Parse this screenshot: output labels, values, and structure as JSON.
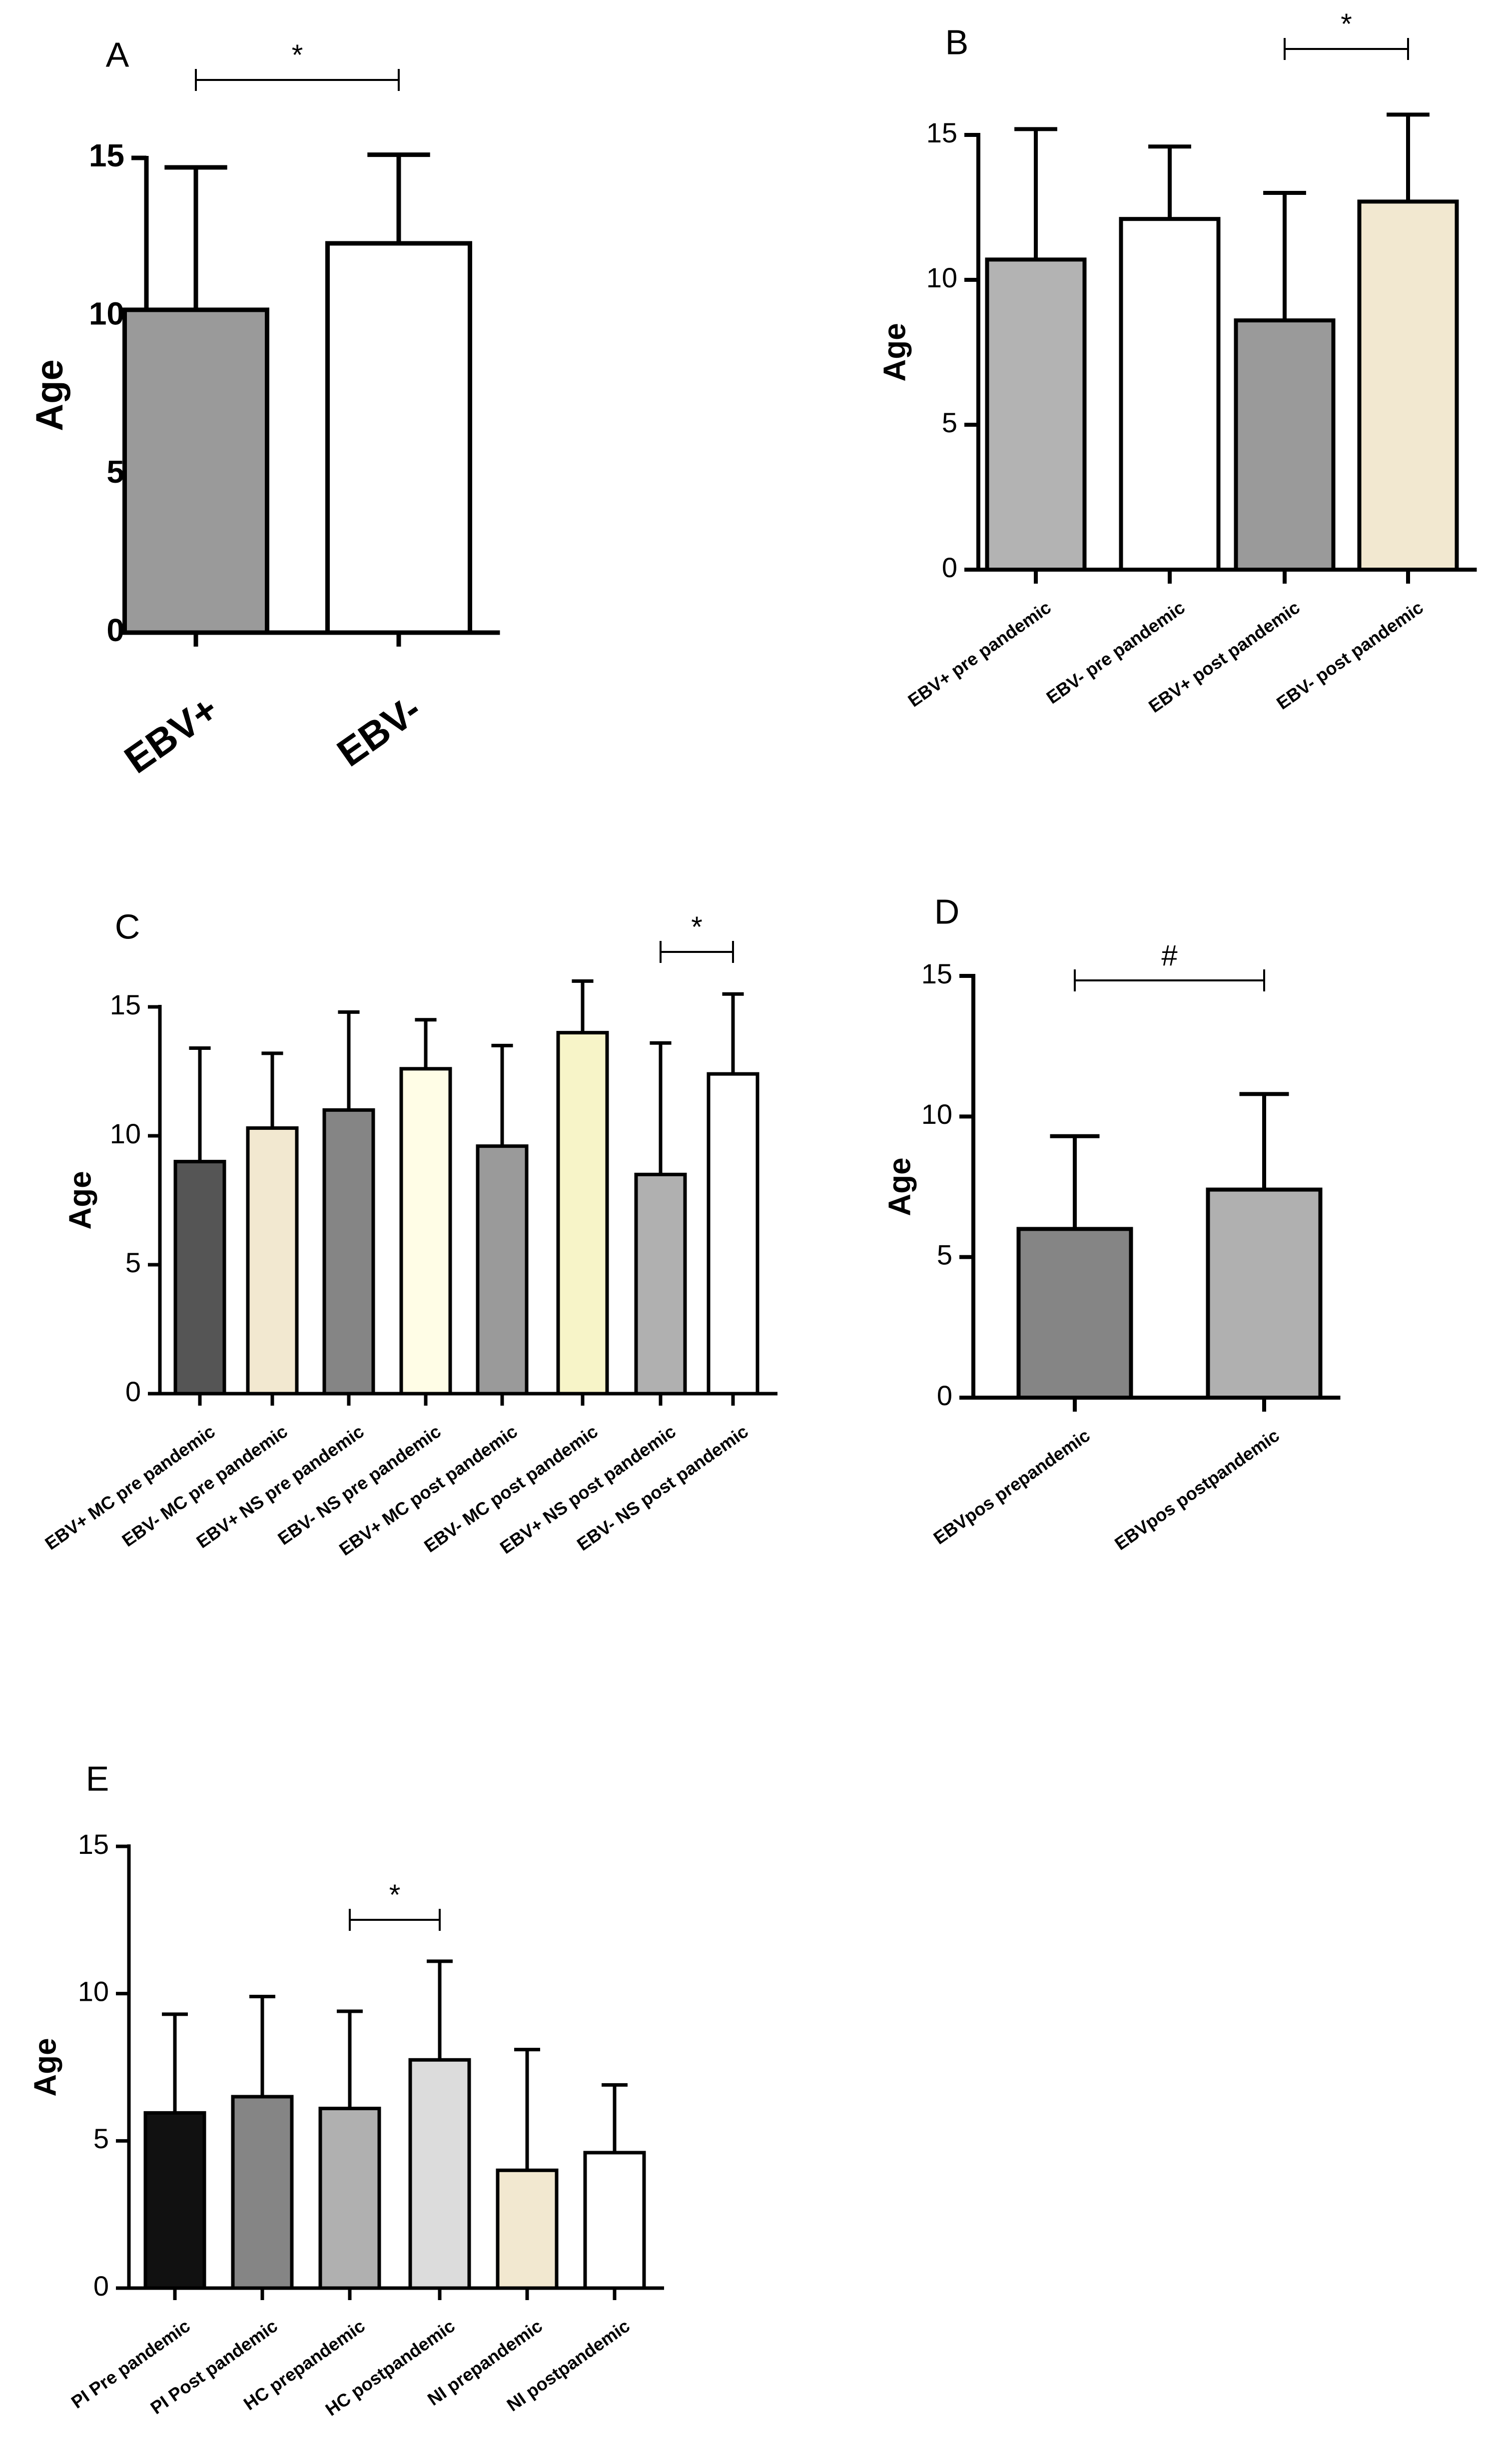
{
  "chart_data": [
    {
      "panel": "A",
      "type": "bar",
      "ylabel": "Age",
      "ylim": [
        0,
        15
      ],
      "yticks": [
        0,
        5,
        10,
        15
      ],
      "categories": [
        "EBV+",
        "EBV-"
      ],
      "values": [
        10.2,
        12.3
      ],
      "errors": [
        4.5,
        2.8
      ],
      "colors": [
        "#9a9a9a",
        "#ffffff"
      ],
      "significance": [
        {
          "from": 0,
          "to": 1,
          "label": "*"
        }
      ]
    },
    {
      "panel": "B",
      "type": "bar",
      "ylabel": "Age",
      "ylim": [
        0,
        15
      ],
      "yticks": [
        0,
        5,
        10,
        15
      ],
      "categories": [
        "EBV+ pre pandemic",
        "EBV- pre pandemic",
        "EBV+ post pandemic",
        "EBV- post pandemic"
      ],
      "values": [
        10.7,
        12.1,
        8.6,
        12.7
      ],
      "errors": [
        4.5,
        2.5,
        4.4,
        3.0
      ],
      "colors": [
        "#b3b3b3",
        "#ffffff",
        "#9a9a9a",
        "#f2e8d0"
      ],
      "significance": [
        {
          "from": 2,
          "to": 3,
          "label": "*"
        }
      ]
    },
    {
      "panel": "C",
      "type": "bar",
      "ylabel": "Age",
      "ylim": [
        0,
        15
      ],
      "yticks": [
        0,
        5,
        10,
        15
      ],
      "categories": [
        "EBV+ MC pre pandemic",
        "EBV- MC pre pandemic",
        "EBV+ NS pre pandemic",
        "EBV- NS pre pandemic",
        "EBV+ MC post pandemic",
        "EBV- MC post pandemic",
        "EBV+ NS post pandemic",
        "EBV- NS post pandemic"
      ],
      "values": [
        9.0,
        10.3,
        11.0,
        12.6,
        9.6,
        14.0,
        8.5,
        12.4
      ],
      "errors": [
        4.4,
        2.9,
        3.8,
        1.9,
        3.9,
        2.0,
        5.1,
        3.1
      ],
      "colors": [
        "#555555",
        "#f2e8d0",
        "#858585",
        "#fffde6",
        "#9a9a9a",
        "#f7f4c8",
        "#b0b0b0",
        "#ffffff"
      ],
      "significance": [
        {
          "from": 6,
          "to": 7,
          "label": "*"
        }
      ]
    },
    {
      "panel": "D",
      "type": "bar",
      "ylabel": "Age",
      "ylim": [
        0,
        15
      ],
      "yticks": [
        0,
        5,
        10,
        15
      ],
      "categories": [
        "EBVpos prepandemic",
        "EBVpos postpandemic"
      ],
      "values": [
        6.0,
        7.4
      ],
      "errors": [
        3.3,
        3.4
      ],
      "colors": [
        "#858585",
        "#b0b0b0"
      ],
      "significance": [
        {
          "from": 0,
          "to": 1,
          "label": "#"
        }
      ]
    },
    {
      "panel": "E",
      "type": "bar",
      "ylabel": "Age",
      "ylim": [
        0,
        15
      ],
      "yticks": [
        0,
        5,
        10,
        15
      ],
      "categories": [
        "PI Pre pandemic",
        "PI Post pandemic",
        "HC prepandemic",
        "HC postpandemic",
        "NI prepandemic",
        "NI postpandemic"
      ],
      "values": [
        5.95,
        6.5,
        6.1,
        7.75,
        4.0,
        4.6
      ],
      "errors": [
        3.35,
        3.4,
        3.3,
        3.35,
        4.1,
        2.3
      ],
      "colors": [
        "#111111",
        "#858585",
        "#b0b0b0",
        "#dcdcdc",
        "#f2e8d0",
        "#ffffff"
      ],
      "significance": [
        {
          "from": 2,
          "to": 3,
          "label": "*"
        }
      ]
    }
  ]
}
